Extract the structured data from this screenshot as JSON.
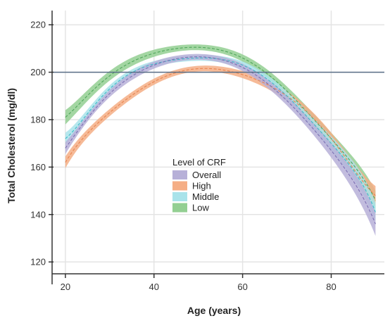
{
  "chart_data": {
    "type": "line",
    "xlabel": "Age (years)",
    "ylabel": "Total Cholesterol (mg/dl)",
    "xlim": [
      17,
      92
    ],
    "ylim": [
      115,
      226
    ],
    "xticks": [
      20,
      40,
      60,
      80
    ],
    "yticks": [
      120,
      140,
      160,
      180,
      200,
      220
    ],
    "reference_line": {
      "y": 200
    },
    "x": [
      20,
      30,
      40,
      50,
      60,
      70,
      80,
      90
    ],
    "legend": {
      "title": "Level of CRF",
      "placement": "center"
    },
    "series": [
      {
        "name": "Overall",
        "color": "#7b6fb3",
        "band_color": "#b7b0d8",
        "values": [
          168,
          191,
          203,
          206.5,
          202,
          188,
          167,
          136
        ],
        "band_half_width": [
          2.5,
          1.5,
          1.5,
          1.2,
          1.5,
          2,
          3,
          5
        ]
      },
      {
        "name": "High",
        "color": "#e8844f",
        "band_color": "#f5ae85",
        "values": [
          162,
          183,
          196,
          201.5,
          199,
          190,
          172,
          148
        ],
        "band_half_width": [
          2.5,
          1.5,
          1.3,
          1.2,
          1.5,
          2,
          2.5,
          4
        ]
      },
      {
        "name": "Middle",
        "color": "#3fb9c9",
        "band_color": "#a9e3ea",
        "values": [
          172,
          193,
          203.5,
          206,
          203,
          190,
          170,
          141
        ],
        "band_half_width": [
          2.5,
          1.5,
          1.2,
          1.2,
          1.5,
          2,
          3,
          4
        ]
      },
      {
        "name": "Low",
        "color": "#4fa65a",
        "band_color": "#93cf92",
        "values": [
          181,
          198.5,
          208,
          210.5,
          206,
          192,
          172,
          146
        ],
        "band_half_width": [
          3,
          2,
          1.5,
          1.2,
          1.5,
          2,
          2.5,
          4
        ]
      }
    ]
  }
}
